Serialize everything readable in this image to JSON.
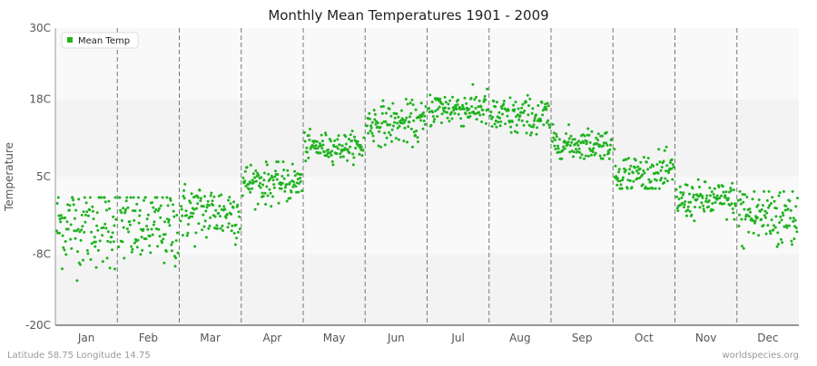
{
  "chart_data": {
    "type": "scatter",
    "title": "Monthly Mean Temperatures 1901 - 2009",
    "xlabel": "",
    "ylabel": "Temperature",
    "ylim": [
      -20,
      30
    ],
    "y_ticks": [
      {
        "value": 30,
        "label": "30C"
      },
      {
        "value": 18,
        "label": "18C"
      },
      {
        "value": 5,
        "label": "5C"
      },
      {
        "value": -8,
        "label": "-8C"
      },
      {
        "value": -20,
        "label": "-20C"
      }
    ],
    "categories": [
      "Jan",
      "Feb",
      "Mar",
      "Apr",
      "May",
      "Jun",
      "Jul",
      "Aug",
      "Sep",
      "Oct",
      "Nov",
      "Dec"
    ],
    "grid": true,
    "legend": {
      "position": "top-left",
      "entries": [
        "Mean Temp"
      ]
    },
    "series": [
      {
        "name": "Mean Temp",
        "color": "#1fb31f",
        "points_per_month": 109,
        "monthly_summary": [
          {
            "month": "Jan",
            "mean": -3.0,
            "min": -12.5,
            "max": 1.5
          },
          {
            "month": "Feb",
            "mean": -3.5,
            "min": -12.5,
            "max": 1.5
          },
          {
            "month": "Mar",
            "mean": -1.0,
            "min": -7.5,
            "max": 4.0
          },
          {
            "month": "Apr",
            "mean": 4.0,
            "min": -0.5,
            "max": 7.5
          },
          {
            "month": "May",
            "mean": 10.0,
            "min": 7.0,
            "max": 13.0
          },
          {
            "month": "Jun",
            "mean": 14.0,
            "min": 10.0,
            "max": 18.5
          },
          {
            "month": "Jul",
            "mean": 16.5,
            "min": 13.5,
            "max": 20.5
          },
          {
            "month": "Aug",
            "mean": 15.0,
            "min": 12.0,
            "max": 19.5
          },
          {
            "month": "Sep",
            "mean": 10.5,
            "min": 8.0,
            "max": 14.0
          },
          {
            "month": "Oct",
            "mean": 5.5,
            "min": 3.0,
            "max": 10.0
          },
          {
            "month": "Nov",
            "mean": 1.0,
            "min": -3.0,
            "max": 4.5
          },
          {
            "month": "Dec",
            "mean": -1.5,
            "min": -9.5,
            "max": 2.5
          }
        ]
      }
    ],
    "footer_left": "Latitude 58.75 Longitude 14.75",
    "footer_right": "worldspecies.org"
  }
}
